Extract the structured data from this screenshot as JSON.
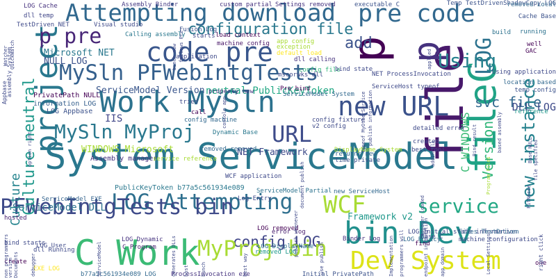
{
  "palette": {
    "background": "#ffffff"
  },
  "words": [
    {
      "text": "System ServiceModel",
      "color": "#2a788e"
    },
    {
      "text": "Attempting download",
      "color": "#31688e"
    },
    {
      "text": "Work MySln",
      "color": "#2c728e"
    },
    {
      "text": "bin Dev",
      "color": "#21908d"
    },
    {
      "text": "C Work",
      "color": "#3bbb75"
    },
    {
      "text": "LOG Attempting",
      "color": "#2e6f8e"
    },
    {
      "text": "MySln PFWebIntgTests",
      "color": "#35608d"
    },
    {
      "text": "PFWebIntgTests bin",
      "color": "#3e4a89"
    },
    {
      "text": "code pre",
      "color": "#39568c"
    },
    {
      "text": "new URL",
      "color": "#3b528b"
    },
    {
      "text": "file",
      "color": "#48196b"
    },
    {
      "text": "URL",
      "color": "#3e4c8a"
    },
    {
      "text": "MySln MyProj",
      "color": "#2a788e"
    },
    {
      "text": "p",
      "color": "#440154"
    },
    {
      "text": "p",
      "color": "#46327e"
    },
    {
      "text": "project",
      "color": "#2a788e"
    },
    {
      "text": "p pre",
      "color": "#482677"
    },
    {
      "text": "pre code",
      "color": "#31688e"
    },
    {
      "text": "fileC",
      "color": "#20a386"
    },
    {
      "text": "LOG",
      "color": "#2c728e"
    },
    {
      "text": "Using",
      "color": "#26828e"
    },
    {
      "text": "add",
      "color": "#3b528b"
    },
    {
      "text": "configuration file",
      "color": "#2a788e"
    },
    {
      "text": "WCF",
      "color": "#a8db34"
    },
    {
      "text": "service",
      "color": "#22a884"
    },
    {
      "text": "svc file",
      "color": "#31688e"
    },
    {
      "text": "config LOG",
      "color": "#404688"
    },
    {
      "text": "MyProj bin",
      "color": "#a8db34"
    },
    {
      "text": "Dev System",
      "color": "#dde318"
    },
    {
      "text": "Culture neutral",
      "color": "#1f988b"
    },
    {
      "text": "new instance",
      "color": "#26828e"
    },
    {
      "text": "Version",
      "color": "#32b67a"
    },
    {
      "text": "C WINDOWS",
      "color": "#3bbb75"
    },
    {
      "text": "DLL LOG",
      "color": "#3e4a89"
    },
    {
      "text": "ServiceModel DLL",
      "color": "#2c728e"
    },
    {
      "text": "ServiceModel Version",
      "color": "#39568c"
    },
    {
      "text": "neutral PublicKeyToken",
      "color": "#22a884"
    },
    {
      "text": "Microsoft NET",
      "color": "#2a788e"
    },
    {
      "text": "NULL LOG",
      "color": "#3b528b"
    },
    {
      "text": "IIS",
      "color": "#404688"
    },
    {
      "text": "WINDOWS Microsoft",
      "color": "#a8db34"
    },
    {
      "text": "Framework v2",
      "color": "#1f988b"
    },
    {
      "text": "NET Framework",
      "color": "#3e4a89"
    },
    {
      "text": "Culture",
      "color": "#25848e"
    },
    {
      "text": "PrivatePath NULL",
      "color": "#440154"
    },
    {
      "text": "LOG Appbase",
      "color": "#3b528b"
    },
    {
      "text": "information LOG",
      "color": "#355f8d"
    },
    {
      "text": "machine config",
      "color": "#481668"
    },
    {
      "text": "PublicKeyToken b77a5c561934e089",
      "color": "#2a788e"
    },
    {
      "text": "ServiceModel EXE",
      "color": "#33638d"
    },
    {
      "text": "config file",
      "color": "#32b67a"
    },
    {
      "text": "LOG Cache",
      "color": "#46327e"
    },
    {
      "text": "dll temp",
      "color": "#404688"
    },
    {
      "text": "TestDriven NET",
      "color": "#3e4989"
    },
    {
      "text": "Visual studio",
      "color": "#3e4989"
    },
    {
      "text": "Assembly manager",
      "color": "#46337f"
    },
    {
      "text": "Calling assembly",
      "color": "#2a788e"
    },
    {
      "text": "LOG Initial state information",
      "color": "#3e4a89"
    },
    {
      "text": "Files TestDriven",
      "color": "#31688e"
    },
    {
      "text": "machine configuration",
      "color": "#3e4a89"
    },
    {
      "text": "b77a5c561934e089 LOG",
      "color": "#31688e"
    },
    {
      "text": "ProcessInvocation exe",
      "color": "#46337f"
    },
    {
      "text": "Initial PrivatePath",
      "color": "#3b528b"
    },
    {
      "text": "LOG DisplayName",
      "color": "#2c728e"
    },
    {
      "text": "error log",
      "color": "#481f70"
    },
    {
      "text": "LOG Policy",
      "color": "#31688e"
    },
    {
      "text": "v2 config",
      "color": "#3e4a89"
    },
    {
      "text": "config fixture",
      "color": "#3e4a89"
    },
    {
      "text": "temp config",
      "color": "#3b528b"
    },
    {
      "text": "location based",
      "color": "#31688e"
    },
    {
      "text": "Using application",
      "color": "#3e4989"
    },
    {
      "text": "reference",
      "color": "#1f988b"
    },
    {
      "text": "running",
      "color": "#2c728e"
    },
    {
      "text": "build",
      "color": "#2c728e"
    },
    {
      "text": "Cache Base",
      "color": "#3b528b"
    },
    {
      "text": "load context",
      "color": "#440154"
    },
    {
      "text": "Fusion Log",
      "color": "#3b528b"
    },
    {
      "text": "custom partial",
      "color": "#46327e"
    },
    {
      "text": "Settings removed",
      "color": "#46337f"
    },
    {
      "text": "executable C",
      "color": "#3b528b"
    },
    {
      "text": "Assembly Binder",
      "color": "#443983"
    },
    {
      "text": "Temp TestDrivenShadowCopy LOG",
      "color": "#3b528b"
    },
    {
      "text": "removed Local",
      "color": "#31688e"
    },
    {
      "text": "dll calling",
      "color": "#46327e"
    },
    {
      "text": "Dynamic Base",
      "color": "#2a788e"
    },
    {
      "text": "created",
      "color": "#3e4989"
    },
    {
      "text": "best tool",
      "color": "#3e4a89"
    },
    {
      "text": "ServiceModel System",
      "color": "#31688e"
    },
    {
      "text": "ServiceHost typeof",
      "color": "#3e4989"
    },
    {
      "text": "NET ProcessInvocation",
      "color": "#3e4989"
    },
    {
      "text": "Pre bind",
      "color": "#440154"
    },
    {
      "text": "properly new",
      "color": "#46337f"
    },
    {
      "text": "removed removed",
      "color": "#31688e"
    },
    {
      "text": "service reference",
      "color": "#a8db34"
    },
    {
      "text": "new ServiceHost",
      "color": "#31688e"
    },
    {
      "text": "ServiceModel Partial",
      "color": "#2c728e"
    },
    {
      "text": "Log Entry",
      "color": "#3e4989"
    },
    {
      "text": "LOG User",
      "color": "#3e4989"
    },
    {
      "text": "Binder Log",
      "color": "#46337f"
    },
    {
      "text": "LOG Dynamic",
      "color": "#46337f"
    },
    {
      "text": "C Program",
      "color": "#481f70"
    },
    {
      "text": "dll Running",
      "color": "#3e4989"
    },
    {
      "text": "EXE LOG",
      "color": "#fde725"
    },
    {
      "text": "LOG removed",
      "color": "#440154"
    },
    {
      "text": "removed LOG",
      "color": "#1f988b"
    },
    {
      "text": "bind starts",
      "color": "#3e4989"
    },
    {
      "text": "hosted",
      "color": "#481f70"
    },
    {
      "text": "create",
      "color": "#440154"
    },
    {
      "text": "time private",
      "color": "#3b528b"
    },
    {
      "text": "returns new",
      "color": "#31688e"
    },
    {
      "text": "DisplayName System",
      "color": "#a8db34"
    },
    {
      "text": "WCF application",
      "color": "#3e4989"
    },
    {
      "text": "Base C",
      "color": "#3e4989"
    },
    {
      "text": "one",
      "color": "#440154"
    },
    {
      "text": "well",
      "color": "#440154"
    },
    {
      "text": "find",
      "color": "#440154"
    },
    {
      "text": "call",
      "color": "#440154"
    },
    {
      "text": "tried",
      "color": "#3e4989"
    },
    {
      "text": "starts",
      "color": "#3e4989"
    },
    {
      "text": "GAC",
      "color": "#440154"
    },
    {
      "text": "app config",
      "color": "#a8db34"
    },
    {
      "text": "exception",
      "color": "#a8db34"
    },
    {
      "text": "default load",
      "color": "#fde725"
    },
    {
      "text": "bind state",
      "color": "#3e4989"
    },
    {
      "text": "mscorwks dll",
      "color": "#3e4989"
    },
    {
      "text": "config machine",
      "color": "#31688e"
    },
    {
      "text": "application",
      "color": "#3e4989"
    },
    {
      "text": "detailed error",
      "color": "#3e4989"
    },
    {
      "text": "publish",
      "color": "#440154"
    },
    {
      "text": "Appbase",
      "color": "#3e4989"
    },
    {
      "text": "assembly System",
      "color": "#3e4989"
    },
    {
      "text": "FitNesse",
      "color": "#3e4989"
    },
    {
      "text": "file specified",
      "color": "#3e4989"
    },
    {
      "text": "Base NULL",
      "color": "#3e4989"
    },
    {
      "text": "right click",
      "color": "#3e4989"
    },
    {
      "text": "based assembly",
      "color": "#3e4989"
    },
    {
      "text": "Program Files",
      "color": "#a8db34"
    },
    {
      "text": "Bind result",
      "color": "#3e4989"
    },
    {
      "text": "addin dll",
      "color": "#3e4989"
    },
    {
      "text": "applied",
      "color": "#3e4989"
    },
    {
      "text": "manager loaded",
      "color": "#3e4989"
    },
    {
      "text": "app domain",
      "color": "#3e4989"
    },
    {
      "text": "endpoint information",
      "color": "#3e4989"
    },
    {
      "text": "Implementation",
      "color": "#3e4989"
    },
    {
      "text": "programmers will",
      "color": "#3e4989"
    },
    {
      "text": "best way",
      "color": "#3e4989"
    },
    {
      "text": "bunch",
      "color": "#3e4989"
    },
    {
      "text": "host",
      "color": "#3e4989"
    },
    {
      "text": "generates DLLs",
      "color": "#3e4989"
    },
    {
      "text": "use publish",
      "color": "#3e4989"
    },
    {
      "text": "document publish",
      "color": "#3e4989"
    },
    {
      "text": "publish whenever",
      "color": "#3e4989"
    },
    {
      "text": "Local Settings",
      "color": "#3e4989"
    },
    {
      "text": "Watcher",
      "color": "#3e4989"
    },
    {
      "text": "QuickWatch",
      "color": "#3e4989"
    },
    {
      "text": "bunch now",
      "color": "#3e4989"
    },
    {
      "text": "follows Pre",
      "color": "#3e4989"
    },
    {
      "text": "publish information",
      "color": "#3e4989"
    },
    {
      "text": "typeof MyOtherService",
      "color": "#3e4989"
    },
    {
      "text": "option right",
      "color": "#3e4989"
    },
    {
      "text": "console app",
      "color": "#3e4989"
    },
    {
      "text": "tried deleting",
      "color": "#3e4989"
    },
    {
      "text": "non programmers",
      "color": "#3e4989"
    },
    {
      "text": "Documents",
      "color": "#3e4989"
    },
    {
      "text": "debugger",
      "color": "#3e4989"
    },
    {
      "text": "ServiceModel",
      "color": "#3e4989"
    },
    {
      "text": "version",
      "color": "#3e4989"
    },
    {
      "text": "dependencies",
      "color": "#3e4989"
    },
    {
      "text": "copies app",
      "color": "#3e4989"
    },
    {
      "text": "track",
      "color": "#3e4989"
    },
    {
      "text": "shows",
      "color": "#3e4989"
    },
    {
      "text": "service",
      "color": "#3e4989"
    }
  ]
}
